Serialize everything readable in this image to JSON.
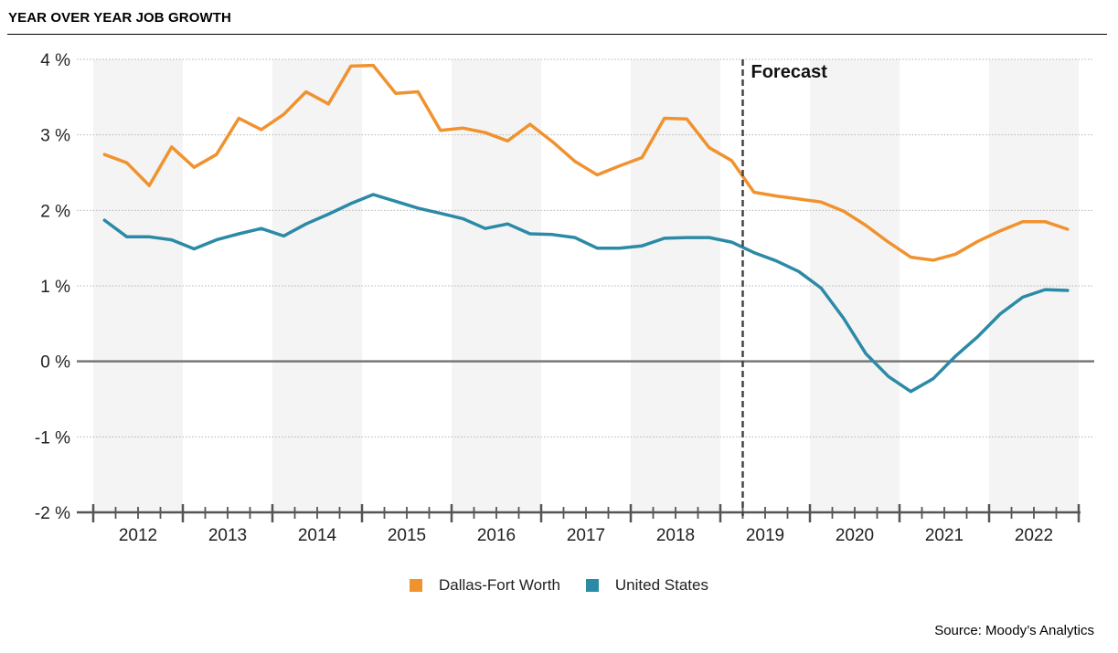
{
  "title": "YEAR OVER YEAR JOB GROWTH",
  "source": "Source: Moody’s Analytics",
  "forecast_label": "Forecast",
  "colors": {
    "dfw": "#F0922E",
    "us": "#2B8AA6",
    "band": "#F4F4F4",
    "zero": "#777777"
  },
  "legend": [
    {
      "label": "Dallas-Fort Worth",
      "color": "#F0922E"
    },
    {
      "label": "United States",
      "color": "#2B8AA6"
    }
  ],
  "chart_data": {
    "type": "line",
    "title": "YEAR OVER YEAR JOB GROWTH",
    "xlabel": "",
    "ylabel": "",
    "ylim": [
      -2,
      4
    ],
    "xlim": [
      2011.5,
      2022.6
    ],
    "y_ticks": [
      4,
      3,
      2,
      1,
      0,
      -1,
      -2
    ],
    "y_tick_labels": [
      "4 %",
      "3 %",
      "2 %",
      "1 %",
      "0 %",
      "-1 %",
      "-2 %"
    ],
    "x_tick_labels": [
      "2012",
      "2013",
      "2014",
      "2015",
      "2016",
      "2017",
      "2018",
      "2019",
      "2020",
      "2021",
      "2022"
    ],
    "forecast_start": 2018.75,
    "grid": true,
    "alternating_year_bands": true,
    "legend_position": "bottom-center",
    "series": [
      {
        "name": "Dallas-Fort Worth",
        "color": "#F0922E",
        "points": [
          [
            2011.625,
            2.74
          ],
          [
            2011.875,
            2.63
          ],
          [
            2012.125,
            2.33
          ],
          [
            2012.375,
            2.84
          ],
          [
            2012.625,
            2.57
          ],
          [
            2012.875,
            2.74
          ],
          [
            2013.125,
            3.22
          ],
          [
            2013.375,
            3.07
          ],
          [
            2013.625,
            3.27
          ],
          [
            2013.875,
            3.57
          ],
          [
            2014.125,
            3.41
          ],
          [
            2014.375,
            3.91
          ],
          [
            2014.625,
            3.92
          ],
          [
            2014.875,
            3.55
          ],
          [
            2015.125,
            3.57
          ],
          [
            2015.375,
            3.06
          ],
          [
            2015.625,
            3.09
          ],
          [
            2015.875,
            3.03
          ],
          [
            2016.125,
            2.92
          ],
          [
            2016.375,
            3.14
          ],
          [
            2016.625,
            2.91
          ],
          [
            2016.875,
            2.65
          ],
          [
            2017.125,
            2.47
          ],
          [
            2017.375,
            2.59
          ],
          [
            2017.625,
            2.7
          ],
          [
            2017.875,
            3.22
          ],
          [
            2018.125,
            3.21
          ],
          [
            2018.375,
            2.83
          ],
          [
            2018.625,
            2.66
          ],
          [
            2018.875,
            2.24
          ],
          [
            2019.125,
            2.19
          ],
          [
            2019.375,
            2.15
          ],
          [
            2019.625,
            2.11
          ],
          [
            2019.875,
            1.99
          ],
          [
            2020.125,
            1.8
          ],
          [
            2020.375,
            1.58
          ],
          [
            2020.625,
            1.38
          ],
          [
            2020.875,
            1.34
          ],
          [
            2021.125,
            1.42
          ],
          [
            2021.375,
            1.59
          ],
          [
            2021.625,
            1.73
          ],
          [
            2021.875,
            1.85
          ],
          [
            2022.125,
            1.85
          ],
          [
            2022.375,
            1.75
          ]
        ]
      },
      {
        "name": "United States",
        "color": "#2B8AA6",
        "points": [
          [
            2011.625,
            1.87
          ],
          [
            2011.875,
            1.65
          ],
          [
            2012.125,
            1.65
          ],
          [
            2012.375,
            1.61
          ],
          [
            2012.625,
            1.49
          ],
          [
            2012.875,
            1.61
          ],
          [
            2013.125,
            1.69
          ],
          [
            2013.375,
            1.76
          ],
          [
            2013.625,
            1.66
          ],
          [
            2013.875,
            1.82
          ],
          [
            2014.125,
            1.95
          ],
          [
            2014.375,
            2.09
          ],
          [
            2014.625,
            2.21
          ],
          [
            2014.875,
            2.12
          ],
          [
            2015.125,
            2.03
          ],
          [
            2015.375,
            1.96
          ],
          [
            2015.625,
            1.89
          ],
          [
            2015.875,
            1.76
          ],
          [
            2016.125,
            1.82
          ],
          [
            2016.375,
            1.69
          ],
          [
            2016.625,
            1.68
          ],
          [
            2016.875,
            1.64
          ],
          [
            2017.125,
            1.5
          ],
          [
            2017.375,
            1.5
          ],
          [
            2017.625,
            1.53
          ],
          [
            2017.875,
            1.63
          ],
          [
            2018.125,
            1.64
          ],
          [
            2018.375,
            1.64
          ],
          [
            2018.625,
            1.58
          ],
          [
            2018.875,
            1.44
          ],
          [
            2019.125,
            1.33
          ],
          [
            2019.375,
            1.19
          ],
          [
            2019.625,
            0.97
          ],
          [
            2019.875,
            0.57
          ],
          [
            2020.125,
            0.1
          ],
          [
            2020.375,
            -0.2
          ],
          [
            2020.625,
            -0.4
          ],
          [
            2020.875,
            -0.23
          ],
          [
            2021.125,
            0.07
          ],
          [
            2021.375,
            0.33
          ],
          [
            2021.625,
            0.63
          ],
          [
            2021.875,
            0.85
          ],
          [
            2022.125,
            0.95
          ],
          [
            2022.375,
            0.94
          ]
        ]
      }
    ]
  }
}
